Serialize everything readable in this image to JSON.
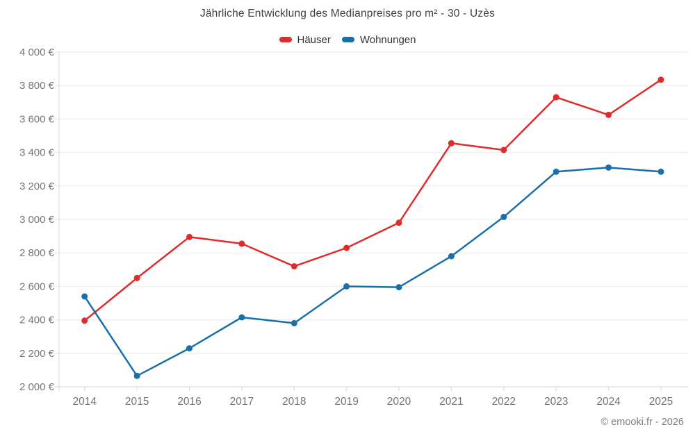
{
  "footer": {
    "copyright": "© emooki.fr - 2026"
  },
  "chart_data": {
    "type": "line",
    "title": "Jährliche Entwicklung des Medianpreises pro m² - 30 - Uzès",
    "categories": [
      "2014",
      "2015",
      "2016",
      "2017",
      "2018",
      "2019",
      "2020",
      "2021",
      "2022",
      "2023",
      "2024",
      "2025"
    ],
    "series": [
      {
        "name": "Häuser",
        "color": "#e02b2b",
        "values": [
          2395,
          2650,
          2895,
          2855,
          2720,
          2830,
          2980,
          3455,
          3415,
          3730,
          3625,
          3835
        ]
      },
      {
        "name": "Wohnungen",
        "color": "#1a6fa9",
        "values": [
          2540,
          2065,
          2230,
          2415,
          2380,
          2600,
          2595,
          2780,
          3015,
          3285,
          3310,
          3285
        ]
      }
    ],
    "xlabel": "",
    "ylabel": "",
    "ylim": [
      2000,
      4000
    ],
    "ytick_step": 200,
    "ytick_format": "{value} €",
    "grid": true,
    "legend_position": "top",
    "colors": {
      "grid_line": "#e9e9e9",
      "axis_line": "#d4d4d4",
      "tick_label": "#757575",
      "title_text": "#3f3f3f"
    }
  }
}
